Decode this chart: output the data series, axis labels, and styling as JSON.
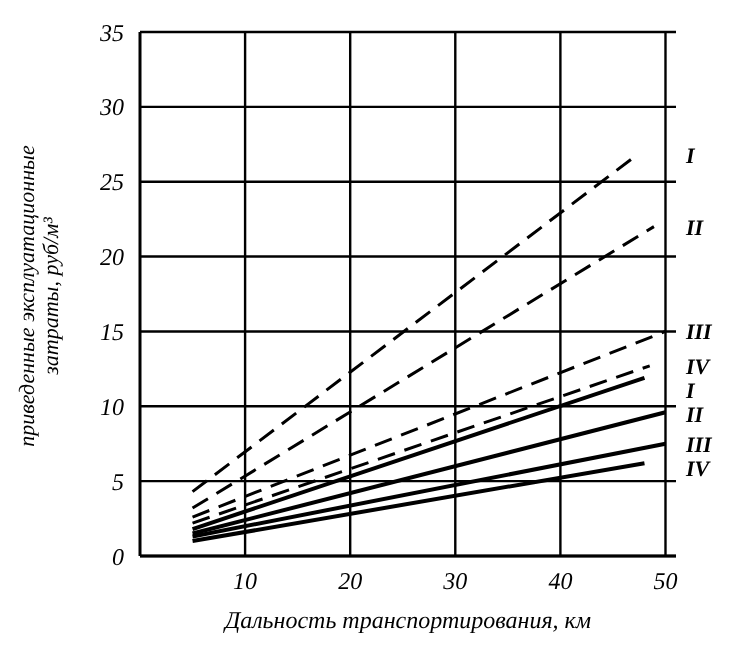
{
  "chart_data": {
    "type": "line",
    "xlabel": "Дальность транспортирования, км",
    "ylabel": "приведенные эксплуатационные затраты, руб/м³",
    "xlim": [
      0,
      51
    ],
    "ylim": [
      0,
      35
    ],
    "xticks": [
      10,
      20,
      30,
      40,
      50
    ],
    "yticks": [
      0,
      5,
      10,
      15,
      20,
      25,
      30,
      35
    ],
    "grid": true,
    "marker": "none",
    "series": [
      {
        "name": "I",
        "color": "#000000",
        "line_style": "dashed",
        "x": [
          5,
          47.3
        ],
        "values": [
          4.3,
          26.8
        ]
      },
      {
        "name": "II",
        "color": "#000000",
        "line_style": "dashed",
        "x": [
          5,
          48.9
        ],
        "values": [
          3.2,
          22
        ]
      },
      {
        "name": "III",
        "color": "#000000",
        "line_style": "dashed",
        "x": [
          5,
          50
        ],
        "values": [
          2.6,
          15
        ]
      },
      {
        "name": "IV",
        "color": "#000000",
        "line_style": "dashed",
        "x": [
          5,
          48.5
        ],
        "values": [
          2.2,
          12.7
        ]
      },
      {
        "name": "I",
        "color": "#000000",
        "line_style": "solid",
        "x": [
          5,
          48
        ],
        "values": [
          1.8,
          11.9
        ]
      },
      {
        "name": "II",
        "color": "#000000",
        "line_style": "solid",
        "x": [
          5,
          50
        ],
        "values": [
          1.5,
          9.6
        ]
      },
      {
        "name": "III",
        "color": "#000000",
        "line_style": "solid",
        "x": [
          5,
          50
        ],
        "values": [
          1.3,
          7.5
        ]
      },
      {
        "name": "IV",
        "color": "#000000",
        "line_style": "solid",
        "x": [
          5,
          48
        ],
        "values": [
          1,
          6.2
        ]
      }
    ]
  }
}
